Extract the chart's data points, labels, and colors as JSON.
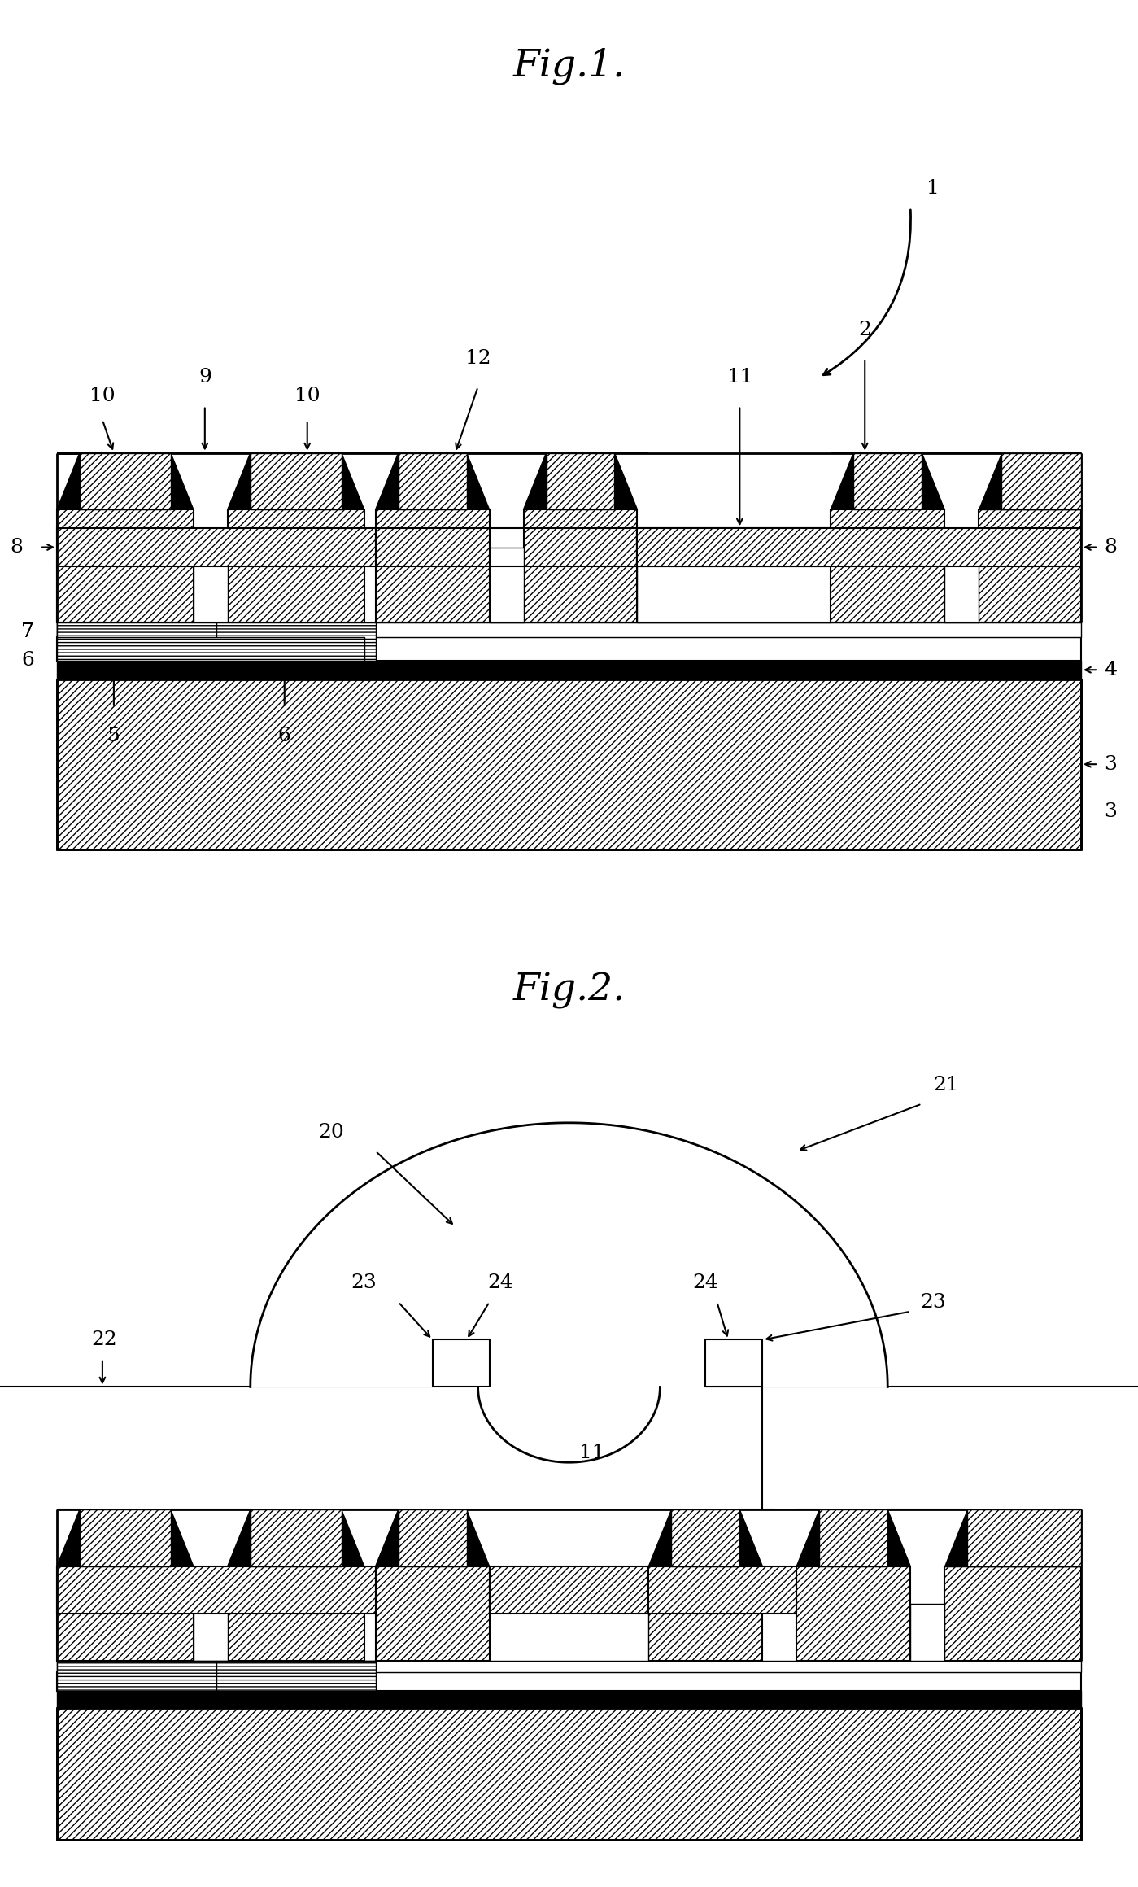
{
  "bg_color": "#ffffff",
  "fig1_title": "Fig.1.",
  "fig2_title": "Fig.2.",
  "lw_thick": 2.0,
  "lw_med": 1.5,
  "lw_thin": 1.0,
  "hatch_diag": "////",
  "hatch_horiz": "----",
  "label_fontsize": 18,
  "title_fontsize": 34
}
